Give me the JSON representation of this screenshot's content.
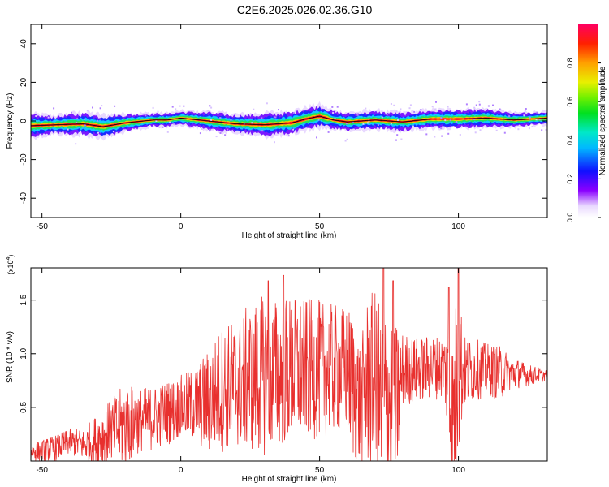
{
  "title": "C2E6.2025.026.02.36.G10",
  "chart_data": [
    {
      "type": "heatmap",
      "xlabel": "Height of straight line (km)",
      "ylabel": "Frequency (Hz)",
      "xlim": [
        -54,
        132
      ],
      "ylim": [
        -50,
        50
      ],
      "xticks": [
        -50,
        0,
        50,
        100
      ],
      "yticks": [
        -40,
        -20,
        0,
        20,
        40
      ],
      "colorbar": {
        "label": "Normalized spectral amplitude",
        "range": [
          0,
          1
        ],
        "ticks": [
          "0.0",
          "0.2",
          "0.4",
          "0.6",
          "0.8"
        ]
      },
      "band": {
        "x": [
          -54,
          -45,
          -35,
          -28,
          -20,
          -10,
          -5,
          0,
          10,
          20,
          30,
          40,
          45,
          50,
          55,
          60,
          70,
          80,
          90,
          100,
          110,
          120,
          132
        ],
        "center_hz": [
          -2.5,
          -2,
          -1.5,
          -3,
          -1,
          0.5,
          0.5,
          1.5,
          0,
          -1.5,
          -2,
          -1,
          1,
          2.5,
          0.5,
          -0.5,
          0.5,
          -0.5,
          1,
          1,
          1.5,
          0.5,
          1.5
        ],
        "half_width_hz": [
          5,
          4,
          5,
          5,
          4,
          3,
          3,
          3,
          4,
          4,
          5,
          5,
          5,
          5,
          4,
          4,
          4,
          4,
          4,
          4,
          4,
          3,
          3
        ],
        "peak_amplitude": 1.0
      },
      "grid": false
    },
    {
      "type": "line",
      "xlabel": "Height of straight line (km)",
      "ylabel": "SNR (10 * v/v)",
      "y_multiplier": "(x10",
      "y_multiplier_exp": "4",
      "xlim": [
        -54,
        132
      ],
      "ylim": [
        0,
        1.8
      ],
      "xticks": [
        -50,
        0,
        50,
        100
      ],
      "yticks": [
        "0.5",
        "1.0",
        "1.5"
      ],
      "line_color": "#e8302e",
      "envelope": {
        "x": [
          -54,
          -45,
          -40,
          -35,
          -30,
          -25,
          -20,
          -15,
          -10,
          -5,
          0,
          5,
          10,
          15,
          20,
          25,
          30,
          35,
          40,
          45,
          50,
          55,
          60,
          62,
          65,
          67,
          70,
          73,
          75,
          77,
          80,
          85,
          90,
          95,
          97,
          98,
          100,
          102,
          105,
          110,
          115,
          120,
          125,
          132
        ],
        "mean": [
          0.08,
          0.12,
          0.18,
          0.15,
          0.2,
          0.28,
          0.33,
          0.38,
          0.4,
          0.45,
          0.5,
          0.52,
          0.55,
          0.68,
          0.72,
          0.78,
          0.8,
          0.82,
          0.85,
          0.86,
          0.85,
          0.86,
          0.84,
          0.7,
          0.5,
          0.72,
          0.7,
          0.4,
          0.6,
          0.4,
          0.85,
          0.85,
          0.87,
          0.88,
          0.6,
          0.3,
          0.9,
          0.82,
          0.85,
          0.85,
          0.82,
          0.82,
          0.8,
          0.8
        ],
        "amplitude": [
          0.08,
          0.12,
          0.12,
          0.15,
          0.25,
          0.3,
          0.4,
          0.3,
          0.3,
          0.3,
          0.3,
          0.35,
          0.5,
          0.6,
          0.6,
          0.7,
          0.75,
          0.7,
          0.7,
          0.65,
          0.65,
          0.6,
          0.6,
          0.7,
          0.6,
          0.8,
          0.9,
          1.0,
          1.0,
          0.9,
          0.35,
          0.3,
          0.3,
          0.3,
          0.7,
          0.9,
          0.9,
          0.35,
          0.3,
          0.25,
          0.25,
          0.15,
          0.1,
          0.05
        ]
      },
      "peaks": [
        {
          "x": 31.5,
          "y": 1.68
        },
        {
          "x": 37,
          "y": 1.73
        },
        {
          "x": 73,
          "y": 1.8
        },
        {
          "x": 76.5,
          "y": 1.68
        },
        {
          "x": 96.5,
          "y": 1.62
        },
        {
          "x": 100,
          "y": 1.8
        }
      ],
      "grid": false
    }
  ]
}
